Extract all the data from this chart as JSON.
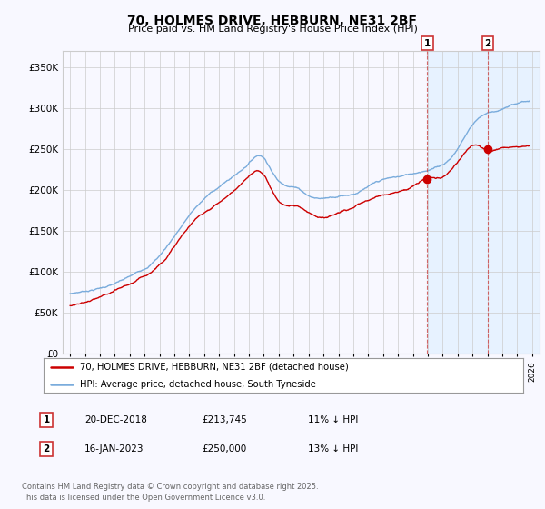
{
  "title": "70, HOLMES DRIVE, HEBBURN, NE31 2BF",
  "subtitle": "Price paid vs. HM Land Registry's House Price Index (HPI)",
  "ylabel_ticks": [
    "£0",
    "£50K",
    "£100K",
    "£150K",
    "£200K",
    "£250K",
    "£300K",
    "£350K"
  ],
  "ytick_values": [
    0,
    50000,
    100000,
    150000,
    200000,
    250000,
    300000,
    350000
  ],
  "ylim": [
    0,
    370000
  ],
  "xlim_years": [
    1994.5,
    2026.5
  ],
  "marker1_date": 2018.97,
  "marker2_date": 2023.04,
  "legend_line1": "70, HOLMES DRIVE, HEBBURN, NE31 2BF (detached house)",
  "legend_line2": "HPI: Average price, detached house, South Tyneside",
  "table_row1": [
    "1",
    "20-DEC-2018",
    "£213,745",
    "11% ↓ HPI"
  ],
  "table_row2": [
    "2",
    "16-JAN-2023",
    "£250,000",
    "13% ↓ HPI"
  ],
  "footnote": "Contains HM Land Registry data © Crown copyright and database right 2025.\nThis data is licensed under the Open Government Licence v3.0.",
  "color_red": "#cc0000",
  "color_blue": "#7aacdc",
  "color_blue_fill": "#dceeff",
  "color_grid": "#cccccc",
  "background_color": "#f8f8ff"
}
